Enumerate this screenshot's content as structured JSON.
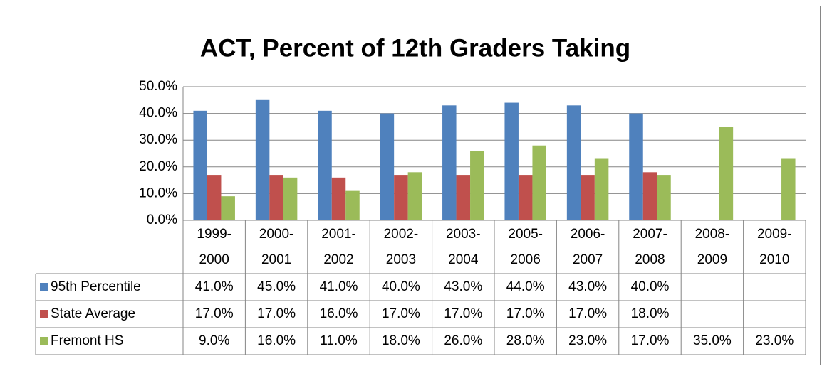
{
  "chart_data": {
    "type": "bar",
    "title": "ACT, Percent of 12th Graders Taking",
    "categories": [
      "1999-2000",
      "2000-2001",
      "2001-2002",
      "2002-2003",
      "2003-2004",
      "2005-2006",
      "2006-2007",
      "2007-2008",
      "2008-2009",
      "2009-2010"
    ],
    "series": [
      {
        "name": "95th Percentile",
        "color": "#4f81bd",
        "values": [
          41,
          45,
          41,
          40,
          43,
          44,
          43,
          40,
          null,
          null
        ],
        "value_labels": [
          "41.0%",
          "45.0%",
          "41.0%",
          "40.0%",
          "43.0%",
          "44.0%",
          "43.0%",
          "40.0%",
          null,
          null
        ]
      },
      {
        "name": "State Average",
        "color": "#c0504d",
        "values": [
          17,
          17,
          16,
          17,
          17,
          17,
          17,
          18,
          null,
          null
        ],
        "value_labels": [
          "17.0%",
          "17.0%",
          "16.0%",
          "17.0%",
          "17.0%",
          "17.0%",
          "17.0%",
          "18.0%",
          null,
          null
        ]
      },
      {
        "name": "Fremont HS",
        "color": "#9bbb59",
        "values": [
          9,
          16,
          11,
          18,
          26,
          28,
          23,
          17,
          35,
          23
        ],
        "value_labels": [
          "9.0%",
          "16.0%",
          "11.0%",
          "18.0%",
          "26.0%",
          "28.0%",
          "23.0%",
          "17.0%",
          "35.0%",
          "23.0%"
        ]
      }
    ],
    "ylim": [
      0,
      50
    ],
    "yticks": [
      {
        "value": 0,
        "label": "0.0%"
      },
      {
        "value": 10,
        "label": "10.0%"
      },
      {
        "value": 20,
        "label": "20.0%"
      },
      {
        "value": 30,
        "label": "30.0%"
      },
      {
        "value": 40,
        "label": "40.0%"
      },
      {
        "value": 50,
        "label": "50.0%"
      }
    ],
    "grid": true
  }
}
